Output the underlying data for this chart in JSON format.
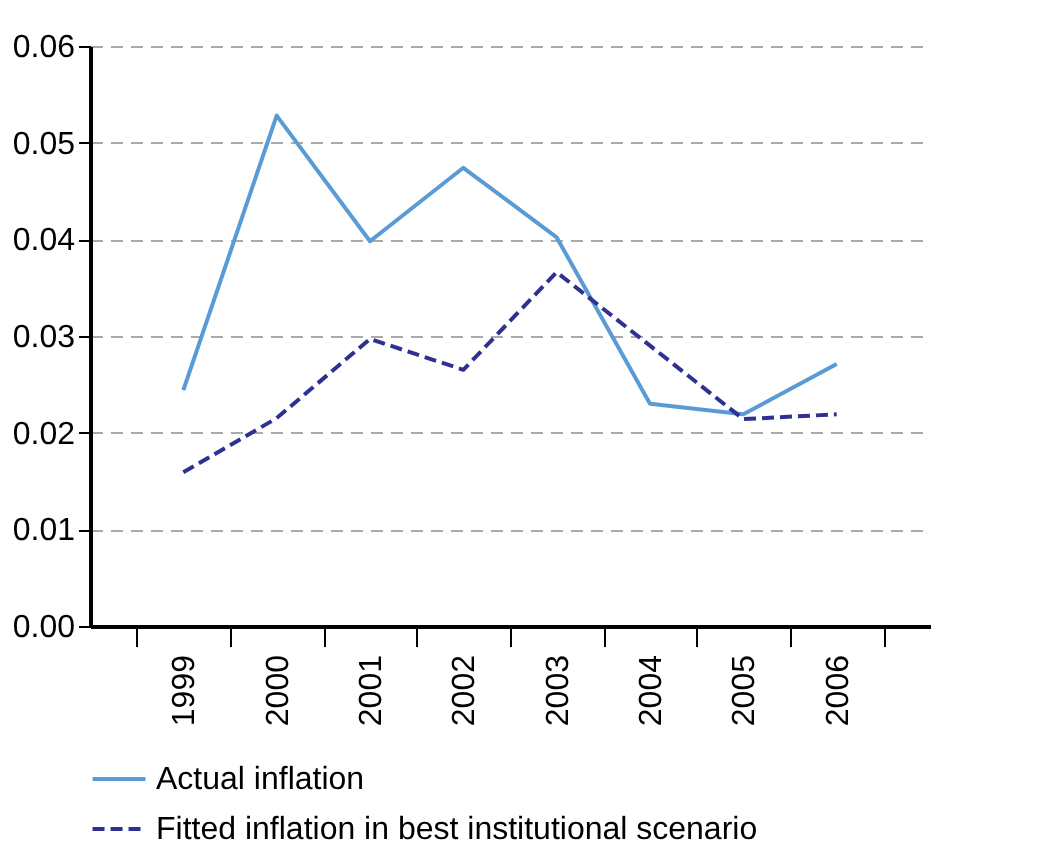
{
  "chart_data": {
    "type": "line",
    "categories": [
      "1999",
      "2000",
      "2001",
      "2002",
      "2003",
      "2004",
      "2005",
      "2006"
    ],
    "series": [
      {
        "name": "Actual inflation",
        "color": "#5b9bd5",
        "line_style": "solid",
        "values": [
          0.0244,
          0.0528,
          0.0398,
          0.0474,
          0.0402,
          0.023,
          0.0219,
          0.0271
        ]
      },
      {
        "name": "Fitted inflation in best institutional scenario",
        "color": "#2e3192",
        "line_style": "dashed",
        "values": [
          0.0159,
          0.0215,
          0.0297,
          0.0265,
          0.0366,
          0.029,
          0.0214,
          0.0219
        ]
      }
    ],
    "ylim": [
      0,
      0.06
    ],
    "yticks": [
      {
        "value": 0,
        "label": "0.00"
      },
      {
        "value": 0.01,
        "label": "0.01"
      },
      {
        "value": 0.02,
        "label": "0.02"
      },
      {
        "value": 0.03,
        "label": "0.03"
      },
      {
        "value": 0.04,
        "label": "0.04"
      },
      {
        "value": 0.05,
        "label": "0.05"
      },
      {
        "value": 0.06,
        "label": "0.06"
      }
    ],
    "grid": "y",
    "legend": "bottom",
    "marker": "none"
  }
}
